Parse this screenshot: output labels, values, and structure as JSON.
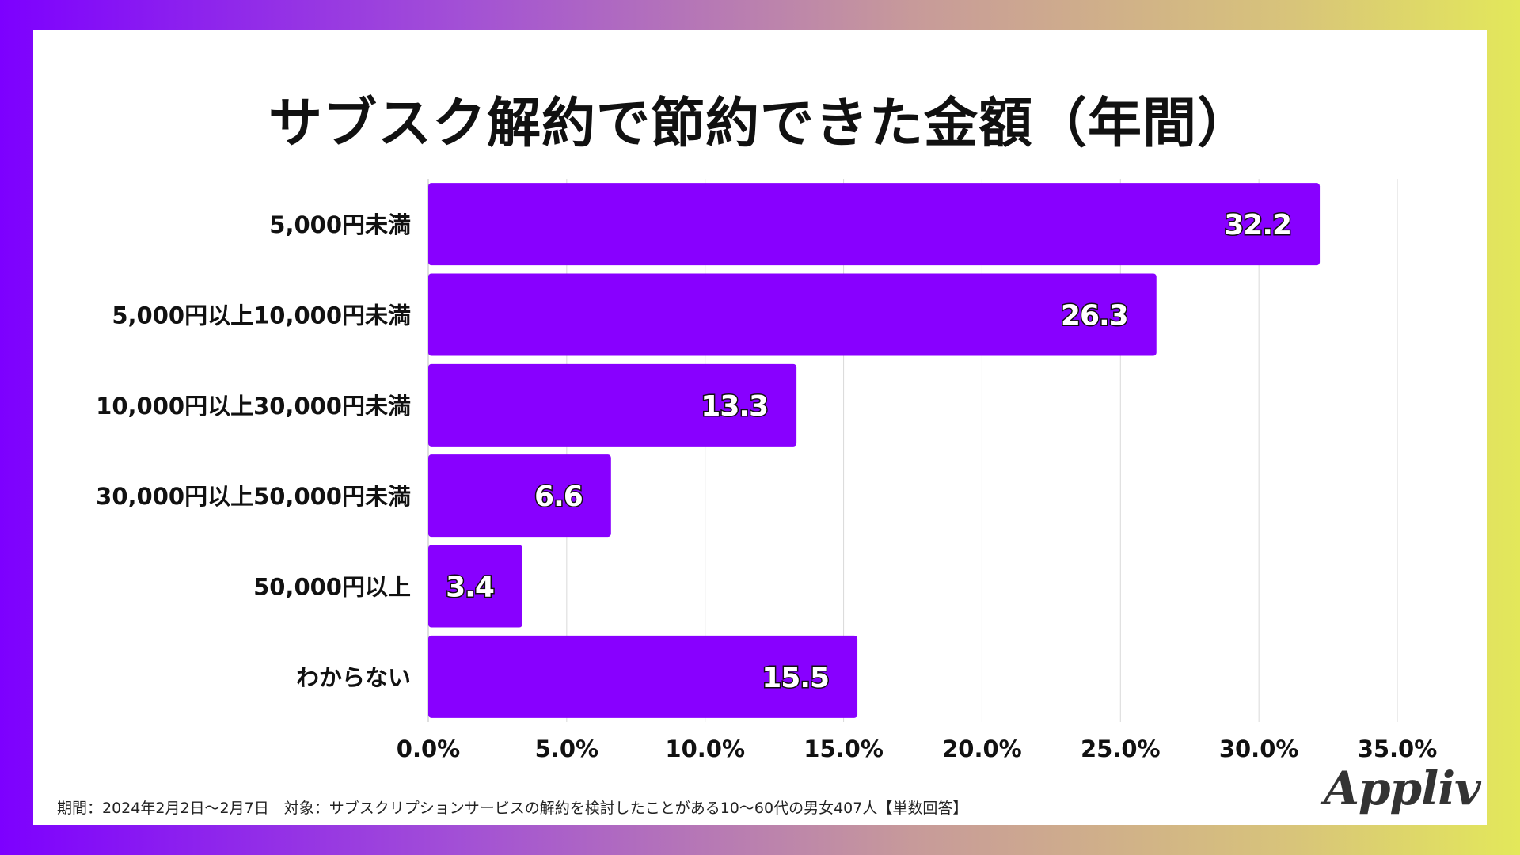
{
  "chart_data": {
    "type": "bar",
    "orientation": "horizontal",
    "title": "サブスク解約で節約できた金額（年間）",
    "categories": [
      "5,000円未満",
      "5,000円以上10,000円未満",
      "10,000円以上30,000円未満",
      "30,000円以上50,000円未満",
      "50,000円以上",
      "わからない"
    ],
    "values": [
      32.2,
      26.3,
      13.3,
      6.6,
      3.4,
      15.5
    ],
    "value_labels": [
      "32.2",
      "26.3",
      "13.3",
      "6.6",
      "3.4",
      "15.5"
    ],
    "xlim": [
      0,
      35
    ],
    "xticks": [
      0,
      5,
      10,
      15,
      20,
      25,
      30,
      35
    ],
    "xtick_labels": [
      "0.0%",
      "5.0%",
      "10.0%",
      "15.0%",
      "20.0%",
      "25.0%",
      "30.0%",
      "35.0%"
    ],
    "grid": true,
    "legend": "none",
    "xlabel": "",
    "ylabel": "",
    "bar_color": "#8800ff"
  },
  "footnote": "期間：2024年2月2日〜2月7日　対象：サブスクリプションサービスの解約を検討したことがある10〜60代の男女407人【単数回答】",
  "logo": "Appliv"
}
